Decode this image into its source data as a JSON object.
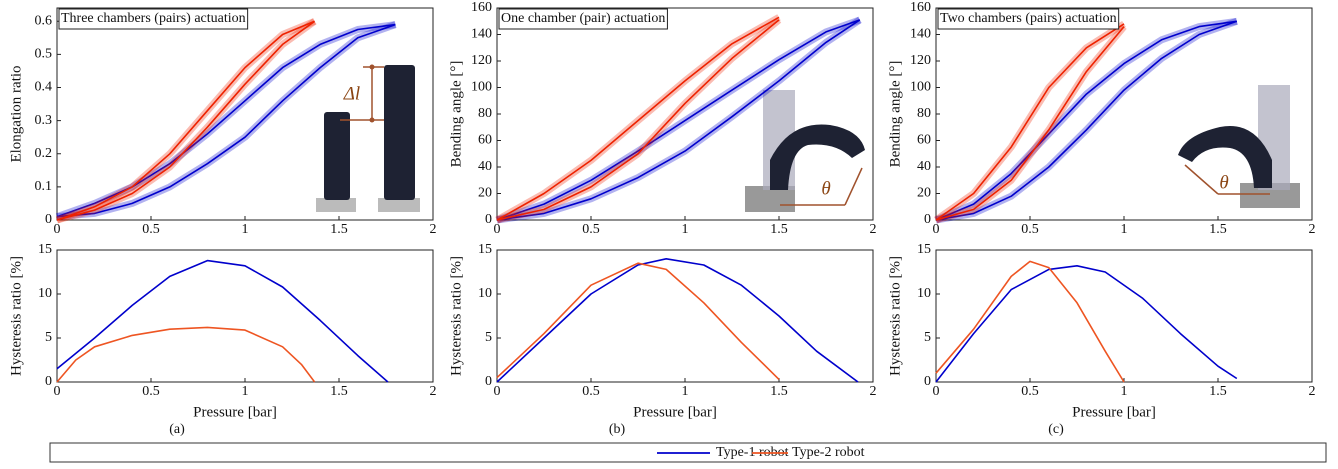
{
  "chart_data": [
    {
      "type": "line",
      "title": "Three chambers (pairs) actuation",
      "y_label": "Elongation ratio",
      "annotations": [
        "Δl"
      ],
      "xlim": [
        0,
        2
      ],
      "xticks": [
        0,
        0.5,
        1,
        1.5,
        2
      ],
      "ylim": [
        0,
        0.64
      ],
      "yticks": [
        0,
        0.1,
        0.2,
        0.3,
        0.4,
        0.5,
        0.6
      ],
      "series": [
        {
          "color": "#0000cc",
          "x": [
            0,
            0.2,
            0.4,
            0.6,
            0.8,
            1.0,
            1.2,
            1.4,
            1.6,
            1.8
          ],
          "values": [
            0.01,
            0.05,
            0.1,
            0.17,
            0.26,
            0.36,
            0.46,
            0.53,
            0.575,
            0.59
          ]
        },
        {
          "color": "#0000cc",
          "x": [
            0,
            0.2,
            0.4,
            0.6,
            0.8,
            1.0,
            1.2,
            1.4,
            1.6,
            1.8
          ],
          "values": [
            0.01,
            0.02,
            0.05,
            0.1,
            0.17,
            0.25,
            0.36,
            0.46,
            0.55,
            0.59
          ]
        },
        {
          "color": "#ee2200",
          "x": [
            0,
            0.2,
            0.4,
            0.6,
            0.8,
            1.0,
            1.2,
            1.37
          ],
          "values": [
            0,
            0.04,
            0.1,
            0.2,
            0.33,
            0.46,
            0.56,
            0.6
          ]
        },
        {
          "color": "#ee2200",
          "x": [
            0,
            0.2,
            0.4,
            0.6,
            0.8,
            1.0,
            1.2,
            1.37
          ],
          "values": [
            0,
            0.03,
            0.08,
            0.16,
            0.28,
            0.41,
            0.53,
            0.6
          ]
        }
      ]
    },
    {
      "type": "line",
      "y_label": "Hysteresis ratio [%]",
      "x_label": "Pressure [bar]",
      "panel_label": "(a)",
      "xlim": [
        0,
        2
      ],
      "xticks": [
        0,
        0.5,
        1,
        1.5,
        2
      ],
      "ylim": [
        0,
        15
      ],
      "yticks": [
        0,
        5,
        10,
        15
      ],
      "series": [
        {
          "color": "#0000cc",
          "x": [
            0,
            0.2,
            0.4,
            0.6,
            0.8,
            1.0,
            1.2,
            1.4,
            1.6,
            1.76
          ],
          "values": [
            1.5,
            5,
            8.7,
            12,
            13.8,
            13.2,
            10.8,
            7,
            3,
            0
          ]
        },
        {
          "color": "#ee5522",
          "x": [
            0,
            0.1,
            0.2,
            0.4,
            0.6,
            0.8,
            1.0,
            1.2,
            1.3,
            1.37
          ],
          "values": [
            0,
            2.5,
            4,
            5.3,
            6,
            6.2,
            5.9,
            4,
            2,
            0
          ]
        }
      ]
    },
    {
      "type": "line",
      "title": "One chamber (pair) actuation",
      "y_label": "Bending angle [°]",
      "annotations": [
        "θ"
      ],
      "xlim": [
        0,
        2
      ],
      "xticks": [
        0,
        0.5,
        1,
        1.5,
        2
      ],
      "ylim": [
        0,
        160
      ],
      "yticks": [
        0,
        20,
        40,
        60,
        80,
        100,
        120,
        140,
        160
      ],
      "series": [
        {
          "color": "#0000cc",
          "x": [
            0,
            0.25,
            0.5,
            0.75,
            1.0,
            1.25,
            1.5,
            1.75,
            1.93
          ],
          "values": [
            0,
            12,
            30,
            52,
            75,
            98,
            121,
            142,
            151
          ]
        },
        {
          "color": "#0000cc",
          "x": [
            0,
            0.25,
            0.5,
            0.75,
            1.0,
            1.25,
            1.5,
            1.75,
            1.93
          ],
          "values": [
            0,
            5,
            16,
            32,
            52,
            78,
            105,
            134,
            151
          ]
        },
        {
          "color": "#ee2200",
          "x": [
            0,
            0.25,
            0.5,
            0.75,
            1.0,
            1.25,
            1.5
          ],
          "values": [
            0,
            20,
            45,
            75,
            105,
            133,
            153
          ]
        },
        {
          "color": "#ee2200",
          "x": [
            0,
            0.25,
            0.5,
            0.75,
            1.0,
            1.25,
            1.5
          ],
          "values": [
            0,
            8,
            25,
            50,
            88,
            122,
            151
          ]
        }
      ]
    },
    {
      "type": "line",
      "y_label": "Hysteresis ratio [%]",
      "x_label": "Pressure [bar]",
      "panel_label": "(b)",
      "xlim": [
        0,
        2
      ],
      "xticks": [
        0,
        0.5,
        1,
        1.5,
        2
      ],
      "ylim": [
        0,
        15
      ],
      "yticks": [
        0,
        5,
        10,
        15
      ],
      "series": [
        {
          "color": "#0000cc",
          "x": [
            0,
            0.25,
            0.5,
            0.75,
            0.9,
            1.1,
            1.3,
            1.5,
            1.7,
            1.92
          ],
          "values": [
            0,
            5,
            10,
            13.3,
            14,
            13.3,
            11,
            7.5,
            3.5,
            0
          ]
        },
        {
          "color": "#ee5522",
          "x": [
            0,
            0.25,
            0.5,
            0.75,
            0.9,
            1.1,
            1.3,
            1.5
          ],
          "values": [
            0.5,
            5.5,
            11,
            13.5,
            12.8,
            9,
            4.5,
            0.3
          ]
        }
      ]
    },
    {
      "type": "line",
      "title": "Two chambers (pairs) actuation",
      "y_label": "Bending angle [°]",
      "annotations": [
        "θ"
      ],
      "xlim": [
        0,
        2
      ],
      "xticks": [
        0,
        0.5,
        1,
        1.5,
        2
      ],
      "ylim": [
        0,
        160
      ],
      "yticks": [
        0,
        20,
        40,
        60,
        80,
        100,
        120,
        140,
        160
      ],
      "series": [
        {
          "color": "#0000cc",
          "x": [
            0,
            0.2,
            0.4,
            0.6,
            0.8,
            1.0,
            1.2,
            1.4,
            1.6
          ],
          "values": [
            0,
            12,
            35,
            65,
            95,
            118,
            136,
            146,
            150
          ]
        },
        {
          "color": "#0000cc",
          "x": [
            0,
            0.2,
            0.4,
            0.6,
            0.8,
            1.0,
            1.2,
            1.4,
            1.6
          ],
          "values": [
            0,
            5,
            18,
            40,
            68,
            98,
            122,
            140,
            150
          ]
        },
        {
          "color": "#ee2200",
          "x": [
            0,
            0.2,
            0.4,
            0.6,
            0.8,
            1.0
          ],
          "values": [
            0,
            20,
            55,
            100,
            130,
            148
          ]
        },
        {
          "color": "#ee2200",
          "x": [
            0,
            0.2,
            0.4,
            0.6,
            0.8,
            1.0
          ],
          "values": [
            0,
            8,
            30,
            68,
            112,
            146
          ]
        }
      ]
    },
    {
      "type": "line",
      "y_label": "Hysteresis ratio [%]",
      "x_label": "Pressure [bar]",
      "panel_label": "(c)",
      "xlim": [
        0,
        2
      ],
      "xticks": [
        0,
        0.5,
        1,
        1.5,
        2
      ],
      "ylim": [
        0,
        15
      ],
      "yticks": [
        0,
        5,
        10,
        15
      ],
      "series": [
        {
          "color": "#0000cc",
          "x": [
            0,
            0.2,
            0.4,
            0.6,
            0.75,
            0.9,
            1.1,
            1.3,
            1.5,
            1.6
          ],
          "values": [
            0,
            5.5,
            10.5,
            12.8,
            13.2,
            12.5,
            9.5,
            5.5,
            1.8,
            0.4
          ]
        },
        {
          "color": "#ee5522",
          "x": [
            0,
            0.2,
            0.4,
            0.5,
            0.6,
            0.75,
            0.9,
            1.0
          ],
          "values": [
            1,
            6,
            12,
            13.7,
            13,
            9,
            3.5,
            0
          ]
        }
      ]
    }
  ],
  "legend": [
    {
      "name": "Type-1 robot",
      "color": "#0000cc"
    },
    {
      "name": "Type-2 robot",
      "color": "#ee5522"
    }
  ]
}
